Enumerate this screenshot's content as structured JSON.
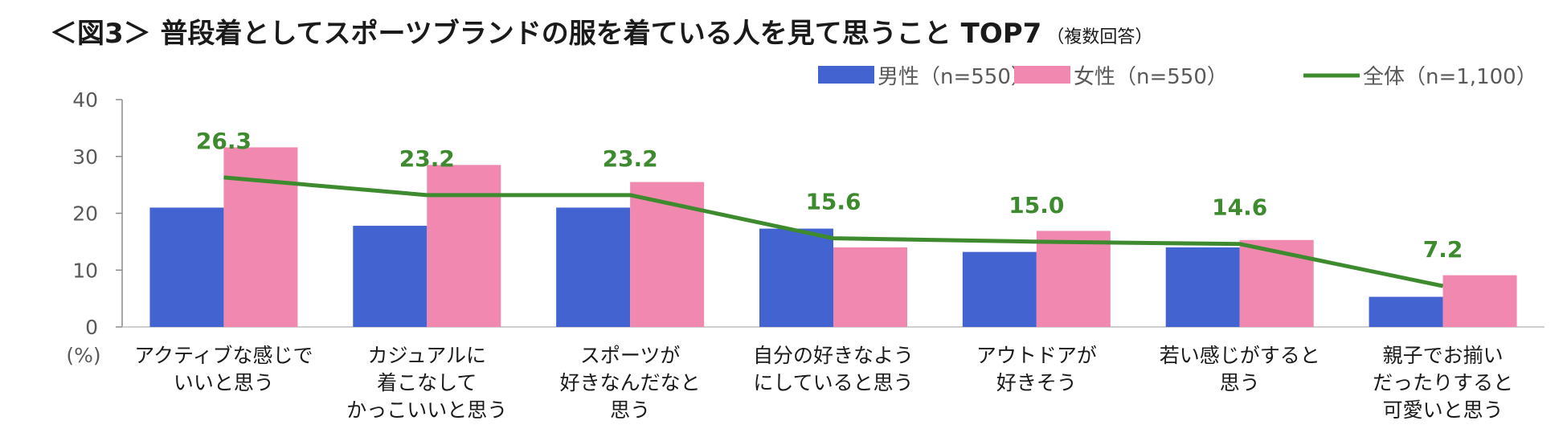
{
  "title": "＜図3＞ 普段着としてスポーツブランドの服を着ている人を見て思うこと TOP7",
  "subtitle": "（複数回答）",
  "chart_data": {
    "type": "bar",
    "categories": [
      [
        "アクティブな感じで",
        "いいと思う"
      ],
      [
        "カジュアルに",
        "着こなして",
        "かっこいいと思う"
      ],
      [
        "スポーツが",
        "好きなんだなと",
        "思う"
      ],
      [
        "自分の好きなよう",
        "にしていると思う"
      ],
      [
        "アウトドアが",
        "好きそう"
      ],
      [
        "若い感じがすると",
        "思う"
      ],
      [
        "親子でお揃い",
        "だったりすると",
        "可愛いと思う"
      ]
    ],
    "series": [
      {
        "name": "男性（n=550）",
        "type": "bar",
        "color": "#4363d1",
        "values": [
          21.0,
          17.8,
          21.0,
          17.3,
          13.2,
          14.0,
          5.3
        ]
      },
      {
        "name": "女性（n=550）",
        "type": "bar",
        "color": "#f088b0",
        "values": [
          31.6,
          28.5,
          25.5,
          14.0,
          16.9,
          15.3,
          9.1
        ]
      },
      {
        "name": "全体（n=1,100）",
        "type": "line",
        "color": "#3e8a2e",
        "values": [
          26.3,
          23.2,
          23.2,
          15.6,
          15.0,
          14.6,
          7.2
        ]
      }
    ],
    "line_labels": [
      "26.3",
      "23.2",
      "23.2",
      "15.6",
      "15.0",
      "14.6",
      "7.2"
    ],
    "ylim": [
      0,
      40
    ],
    "yticks": [
      "0",
      "10",
      "20",
      "30",
      "40"
    ],
    "yunit": "(%)",
    "legend_position": "top-right",
    "grid": false
  }
}
